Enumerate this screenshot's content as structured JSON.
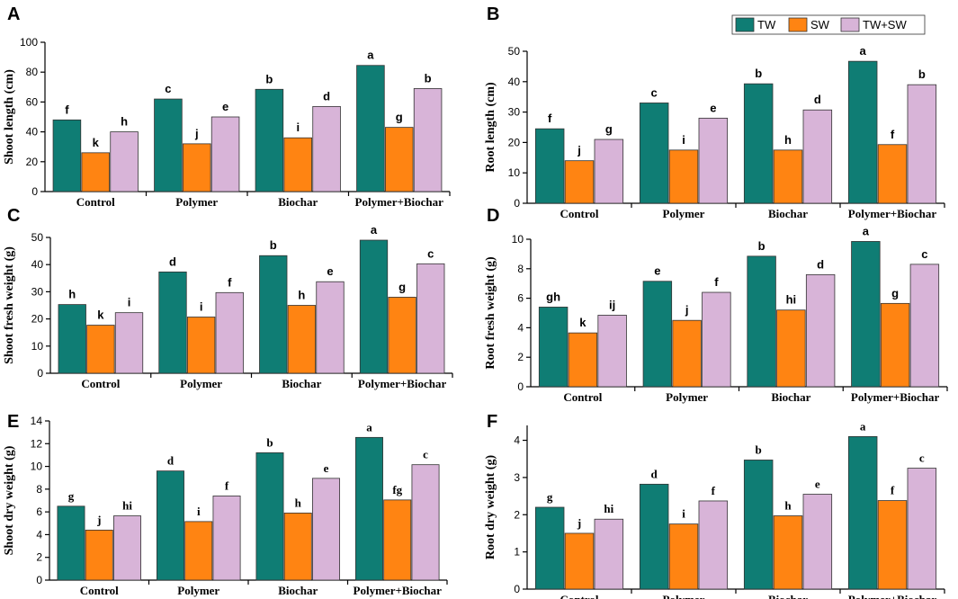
{
  "colors": {
    "TW": "#0f7d74",
    "SW": "#ff8412",
    "TW+SW": "#d8b4d8"
  },
  "legend": {
    "items": [
      "TW",
      "SW",
      "TW+SW"
    ],
    "placement": "top-right"
  },
  "chart_data": [
    {
      "id": "A",
      "type": "bar",
      "ylabel": "Shoot length (cm)",
      "categories": [
        "Control",
        "Polymer",
        "Biochar",
        "Polymer+Biochar"
      ],
      "ylim": [
        0,
        100
      ],
      "yticks": [
        0,
        20,
        40,
        60,
        80,
        100
      ],
      "letter_font": "sans",
      "series": [
        {
          "name": "TW",
          "values": [
            48,
            62,
            68.5,
            84.5
          ],
          "labels": [
            "f",
            "c",
            "b",
            "a"
          ]
        },
        {
          "name": "SW",
          "values": [
            26,
            32,
            36,
            43
          ],
          "labels": [
            "k",
            "j",
            "i",
            "g"
          ]
        },
        {
          "name": "TW+SW",
          "values": [
            40,
            50,
            57,
            69
          ],
          "labels": [
            "h",
            "e",
            "d",
            "b"
          ]
        }
      ]
    },
    {
      "id": "B",
      "type": "bar",
      "ylabel": "Root length (cm)",
      "categories": [
        "Control",
        "Polymer",
        "Biochar",
        "Polymer+Biochar"
      ],
      "ylim": [
        0,
        50
      ],
      "yticks": [
        0,
        10,
        20,
        30,
        40,
        50
      ],
      "letter_font": "sans",
      "series": [
        {
          "name": "TW",
          "values": [
            24.5,
            33,
            39.3,
            46.7
          ],
          "labels": [
            "f",
            "c",
            "b",
            "a"
          ]
        },
        {
          "name": "SW",
          "values": [
            14,
            17.5,
            17.5,
            19.3
          ],
          "labels": [
            "j",
            "i",
            "h",
            "f"
          ]
        },
        {
          "name": "TW+SW",
          "values": [
            21,
            28,
            30.7,
            39
          ],
          "labels": [
            "g",
            "e",
            "d",
            "b"
          ]
        }
      ]
    },
    {
      "id": "C",
      "type": "bar",
      "ylabel": "Shoot fresh weight (g)",
      "categories": [
        "Control",
        "Polymer",
        "Biochar",
        "Polymer+Biochar"
      ],
      "ylim": [
        0,
        50
      ],
      "yticks": [
        0,
        10,
        20,
        30,
        40,
        50
      ],
      "letter_font": "sans",
      "series": [
        {
          "name": "TW",
          "values": [
            25.3,
            37.3,
            43.3,
            49
          ],
          "labels": [
            "h",
            "d",
            "b",
            "a"
          ]
        },
        {
          "name": "SW",
          "values": [
            17.7,
            20.7,
            25,
            28
          ],
          "labels": [
            "k",
            "i",
            "h",
            "g"
          ]
        },
        {
          "name": "TW+SW",
          "values": [
            22.3,
            29.7,
            33.7,
            40.3
          ],
          "labels": [
            "i",
            "f",
            "e",
            "c"
          ]
        }
      ]
    },
    {
      "id": "D",
      "type": "bar",
      "ylabel": "Root fresh weight (g)",
      "categories": [
        "Control",
        "Polymer",
        "Biochar",
        "Polymer+Biochar"
      ],
      "ylim": [
        0,
        10
      ],
      "yticks": [
        0,
        2,
        4,
        6,
        8,
        10
      ],
      "letter_font": "sans",
      "series": [
        {
          "name": "TW",
          "values": [
            5.4,
            7.15,
            8.85,
            9.85
          ],
          "labels": [
            "gh",
            "e",
            "b",
            "a"
          ]
        },
        {
          "name": "SW",
          "values": [
            3.65,
            4.5,
            5.2,
            5.65
          ],
          "labels": [
            "k",
            "j",
            "hi",
            "g"
          ]
        },
        {
          "name": "TW+SW",
          "values": [
            4.85,
            6.4,
            7.6,
            8.3
          ],
          "labels": [
            "ij",
            "f",
            "d",
            "c"
          ]
        }
      ]
    },
    {
      "id": "E",
      "type": "bar",
      "ylabel": "Shoot dry weight (g)",
      "categories": [
        "Control",
        "Polymer",
        "Biochar",
        "Polymer+Biochar"
      ],
      "ylim": [
        0,
        14
      ],
      "yticks": [
        0,
        2,
        4,
        6,
        8,
        10,
        12,
        14
      ],
      "letter_font": "serif",
      "series": [
        {
          "name": "TW",
          "values": [
            6.5,
            9.6,
            11.2,
            12.55
          ],
          "labels": [
            "g",
            "d",
            "b",
            "a"
          ]
        },
        {
          "name": "SW",
          "values": [
            4.4,
            5.15,
            5.9,
            7.05
          ],
          "labels": [
            "j",
            "i",
            "h",
            "fg"
          ]
        },
        {
          "name": "TW+SW",
          "values": [
            5.65,
            7.4,
            8.95,
            10.15
          ],
          "labels": [
            "hi",
            "f",
            "e",
            "c"
          ]
        }
      ]
    },
    {
      "id": "F",
      "type": "bar",
      "ylabel": "Root dry weight (g)",
      "categories": [
        "Control",
        "Polymer",
        "Biochar",
        "Polymer+Biochar"
      ],
      "ylim": [
        0,
        4.4
      ],
      "yticks": [
        0,
        1,
        2,
        3,
        4
      ],
      "letter_font": "serif",
      "series": [
        {
          "name": "TW",
          "values": [
            2.2,
            2.82,
            3.47,
            4.1
          ],
          "labels": [
            "g",
            "d",
            "b",
            "a"
          ]
        },
        {
          "name": "SW",
          "values": [
            1.5,
            1.75,
            1.97,
            2.38
          ],
          "labels": [
            "j",
            "i",
            "h",
            "f"
          ]
        },
        {
          "name": "TW+SW",
          "values": [
            1.88,
            2.37,
            2.55,
            3.25
          ],
          "labels": [
            "hi",
            "f",
            "e",
            "c"
          ]
        }
      ]
    }
  ]
}
